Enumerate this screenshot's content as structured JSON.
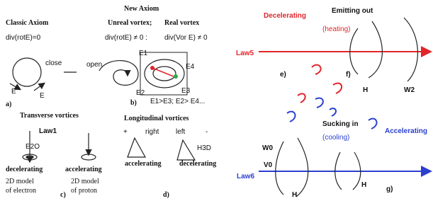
{
  "left": {
    "title": "New Axiom",
    "classic": {
      "heading": "Classic Axiom",
      "equation": "div(rotE)=0",
      "close": "close",
      "field_a": "E",
      "field_b": "E",
      "caption": "a)"
    },
    "unreal": {
      "heading": "Unreal vortex;",
      "equation": "div(rotE) ≠ 0 :",
      "open": "open"
    },
    "real": {
      "heading": "Real vortex",
      "equation": "div(Vor E) ≠ 0",
      "e1": "E1",
      "e2": "E2",
      "e3": "E3",
      "e4": "E4",
      "relation": "E1>E3; E2> E4...",
      "caption": "b)"
    },
    "transverse": {
      "heading": "Transverse vortices",
      "law": "Law1",
      "electron_state": "decelerating",
      "proton_state": "accelerating",
      "electron_model": [
        "2D model",
        "of electron"
      ],
      "proton_model": [
        "2D model",
        "of proton"
      ],
      "field": "E2O",
      "caption": "c)"
    },
    "longitudinal": {
      "heading": "Longitudinal vortices",
      "right": "right",
      "left": "left",
      "state_a": "accelerating",
      "state_b": "decelerating",
      "field": "H3D",
      "caption": "d)"
    }
  },
  "right": {
    "law5": {
      "name": "Law5",
      "state": "Decelerating",
      "action": "Emitting out",
      "effect": "(heating)",
      "caption_e": "e)",
      "caption_f": "f)",
      "h": "H",
      "w": "W2"
    },
    "law6": {
      "name": "Law6",
      "state": "Accelerating",
      "action": "Sucking in",
      "effect": "(cooling)",
      "w": "W0",
      "v": "V0",
      "h_a": "H",
      "h_b": "H",
      "caption": "g)"
    }
  }
}
